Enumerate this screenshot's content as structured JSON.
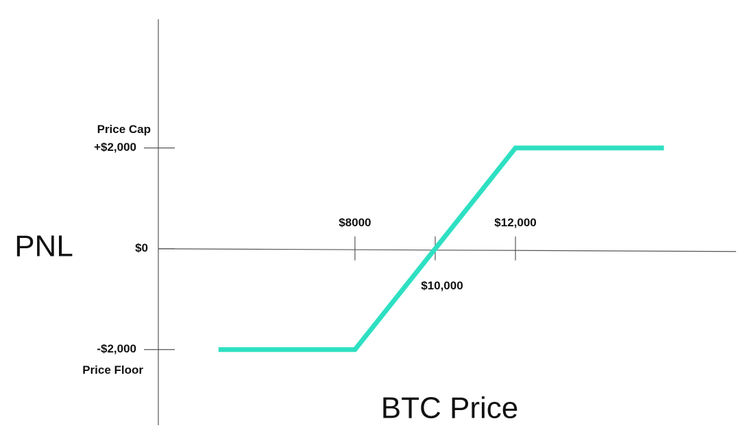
{
  "chart_data": {
    "type": "line",
    "x_label": "BTC Price",
    "y_label": "PNL",
    "x": [
      4600,
      8000,
      12000,
      15700
    ],
    "series": [
      {
        "color": "#2ee0c2",
        "values": [
          -2000,
          -2000,
          2000,
          2000
        ]
      }
    ],
    "xlim": [
      3100,
      17500
    ],
    "xticks": [
      {
        "value": 8000,
        "label": "$8000"
      },
      {
        "value": 10000,
        "label": "$10,000"
      },
      {
        "value": 12000,
        "label": "$12,000"
      }
    ],
    "ylim": [
      -3500,
      4500
    ],
    "yticks": [
      {
        "value": 2000,
        "label": "+$2,000"
      },
      {
        "value": 0,
        "label": "$0"
      },
      {
        "value": -2000,
        "label": "-$2,000"
      }
    ],
    "y_annotations": [
      {
        "value": 2000,
        "text": "Price Cap"
      },
      {
        "value": -2000,
        "text": "Price Floor"
      }
    ]
  }
}
